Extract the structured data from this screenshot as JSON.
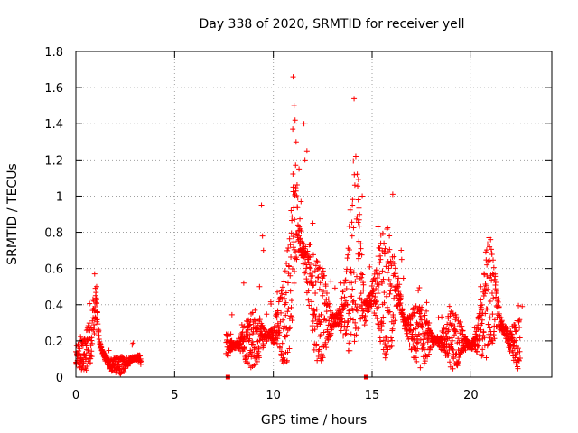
{
  "chart_data": {
    "type": "scatter",
    "title": "Day 338 of 2020, SRMTID for receiver yell",
    "xlabel": "GPS time / hours",
    "ylabel": "SRMTID / TECUs",
    "xlim": [
      0,
      24.1
    ],
    "ylim": [
      0,
      1.8
    ],
    "grid": true,
    "marker": "+",
    "color": "#ff0000",
    "x_ticks": [
      0,
      5,
      10,
      15,
      20
    ],
    "x_tick_labels": [
      "0",
      "5",
      "10",
      "15",
      "20"
    ],
    "y_ticks": [
      0,
      0.2,
      0.4,
      0.6,
      0.8,
      1.0,
      1.2,
      1.4,
      1.6,
      1.8
    ],
    "y_tick_labels": [
      "0",
      "0.2",
      "0.4",
      "0.6",
      "0.8",
      "1",
      "1.2",
      "1.4",
      "1.6",
      "1.8"
    ],
    "gap_markers": [
      7.7,
      14.7
    ],
    "series": [
      {
        "name": "SRMTID",
        "envelope": [
          {
            "x": 0.0,
            "y": 0.12
          },
          {
            "x": 0.4,
            "y": 0.14
          },
          {
            "x": 0.8,
            "y": 0.2
          },
          {
            "x": 1.0,
            "y": 0.42
          },
          {
            "x": 1.2,
            "y": 0.18
          },
          {
            "x": 1.6,
            "y": 0.08
          },
          {
            "x": 2.0,
            "y": 0.06
          },
          {
            "x": 2.5,
            "y": 0.07
          },
          {
            "x": 3.0,
            "y": 0.11
          },
          {
            "x": 3.3,
            "y": 0.1
          },
          {
            "x": 7.6,
            "y": 0.18
          },
          {
            "x": 8.0,
            "y": 0.17
          },
          {
            "x": 8.5,
            "y": 0.2
          },
          {
            "x": 9.0,
            "y": 0.22
          },
          {
            "x": 9.5,
            "y": 0.22
          },
          {
            "x": 10.0,
            "y": 0.24
          },
          {
            "x": 10.5,
            "y": 0.3
          },
          {
            "x": 10.8,
            "y": 0.45
          },
          {
            "x": 11.0,
            "y": 0.75
          },
          {
            "x": 11.2,
            "y": 0.85
          },
          {
            "x": 11.5,
            "y": 0.7
          },
          {
            "x": 11.8,
            "y": 0.55
          },
          {
            "x": 12.0,
            "y": 0.45
          },
          {
            "x": 12.5,
            "y": 0.35
          },
          {
            "x": 13.0,
            "y": 0.3
          },
          {
            "x": 13.5,
            "y": 0.35
          },
          {
            "x": 13.8,
            "y": 0.45
          },
          {
            "x": 14.0,
            "y": 0.65
          },
          {
            "x": 14.3,
            "y": 0.75
          },
          {
            "x": 14.6,
            "y": 0.35
          },
          {
            "x": 15.0,
            "y": 0.45
          },
          {
            "x": 15.5,
            "y": 0.5
          },
          {
            "x": 16.0,
            "y": 0.45
          },
          {
            "x": 16.3,
            "y": 0.5
          },
          {
            "x": 16.6,
            "y": 0.3
          },
          {
            "x": 17.0,
            "y": 0.25
          },
          {
            "x": 17.5,
            "y": 0.22
          },
          {
            "x": 18.0,
            "y": 0.2
          },
          {
            "x": 18.5,
            "y": 0.2
          },
          {
            "x": 19.0,
            "y": 0.21
          },
          {
            "x": 19.5,
            "y": 0.2
          },
          {
            "x": 20.0,
            "y": 0.17
          },
          {
            "x": 20.3,
            "y": 0.2
          },
          {
            "x": 20.6,
            "y": 0.3
          },
          {
            "x": 20.9,
            "y": 0.45
          },
          {
            "x": 21.2,
            "y": 0.4
          },
          {
            "x": 21.5,
            "y": 0.3
          },
          {
            "x": 22.0,
            "y": 0.2
          },
          {
            "x": 22.5,
            "y": 0.18
          }
        ],
        "highlights": [
          {
            "x": 0.95,
            "y": 0.57
          },
          {
            "x": 1.05,
            "y": 0.5
          },
          {
            "x": 1.0,
            "y": 0.45
          },
          {
            "x": 9.4,
            "y": 0.95
          },
          {
            "x": 9.45,
            "y": 0.78
          },
          {
            "x": 9.5,
            "y": 0.7
          },
          {
            "x": 11.0,
            "y": 1.66
          },
          {
            "x": 11.05,
            "y": 1.5
          },
          {
            "x": 11.1,
            "y": 1.42
          },
          {
            "x": 11.15,
            "y": 1.3
          },
          {
            "x": 11.55,
            "y": 1.4
          },
          {
            "x": 11.6,
            "y": 1.2
          },
          {
            "x": 11.7,
            "y": 1.25
          },
          {
            "x": 11.0,
            "y": 1.05
          },
          {
            "x": 11.3,
            "y": 1.15
          },
          {
            "x": 14.0,
            "y": 0.95
          },
          {
            "x": 14.3,
            "y": 0.98
          },
          {
            "x": 14.5,
            "y": 1.0
          },
          {
            "x": 15.3,
            "y": 0.83
          },
          {
            "x": 21.0,
            "y": 0.76
          },
          {
            "x": 20.95,
            "y": 0.72
          },
          {
            "x": 10.9,
            "y": 0.92
          },
          {
            "x": 11.4,
            "y": 0.97
          },
          {
            "x": 12.0,
            "y": 0.85
          },
          {
            "x": 8.5,
            "y": 0.52
          },
          {
            "x": 9.3,
            "y": 0.5
          },
          {
            "x": 10.2,
            "y": 0.47
          },
          {
            "x": 16.5,
            "y": 0.65
          },
          {
            "x": 22.6,
            "y": 0.39
          },
          {
            "x": 20.5,
            "y": 0.5
          }
        ]
      }
    ]
  }
}
